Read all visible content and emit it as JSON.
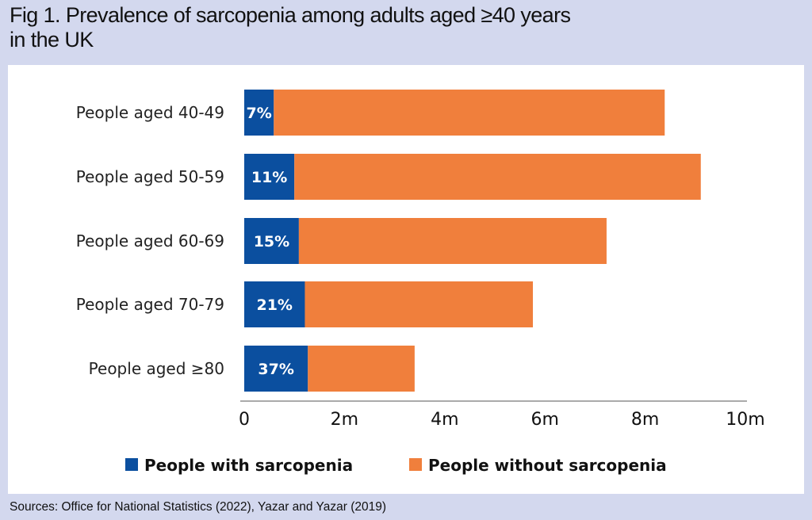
{
  "title_line1": "Fig 1. Prevalence of sarcopenia among adults aged ≥40 years",
  "title_line2": "in the UK",
  "source": "Sources: Office for National Statistics (2022), Yazar and Yazar (2019)",
  "chart_data": {
    "type": "bar",
    "orientation": "horizontal",
    "stacked": true,
    "categories": [
      "People aged 40-49",
      "People aged 50-59",
      "People aged 60-69",
      "People aged 70-79",
      "People aged ≥80"
    ],
    "series": [
      {
        "name": "People with sarcopenia",
        "color": "#0b4f9f",
        "values": [
          0.59,
          1.0,
          1.09,
          1.21,
          1.27
        ],
        "labels": [
          "7%",
          "11%",
          "15%",
          "21%",
          "37%"
        ]
      },
      {
        "name": "People without sarcopenia",
        "color": "#f07f3c",
        "values": [
          7.8,
          8.11,
          6.14,
          4.55,
          2.13
        ]
      }
    ],
    "xlim": [
      0,
      10
    ],
    "xticks": [
      "0",
      "2m",
      "4m",
      "6m",
      "8m",
      "10m"
    ],
    "xtick_values": [
      0,
      2,
      4,
      6,
      8,
      10
    ],
    "legend": "bottom",
    "grid": false
  }
}
